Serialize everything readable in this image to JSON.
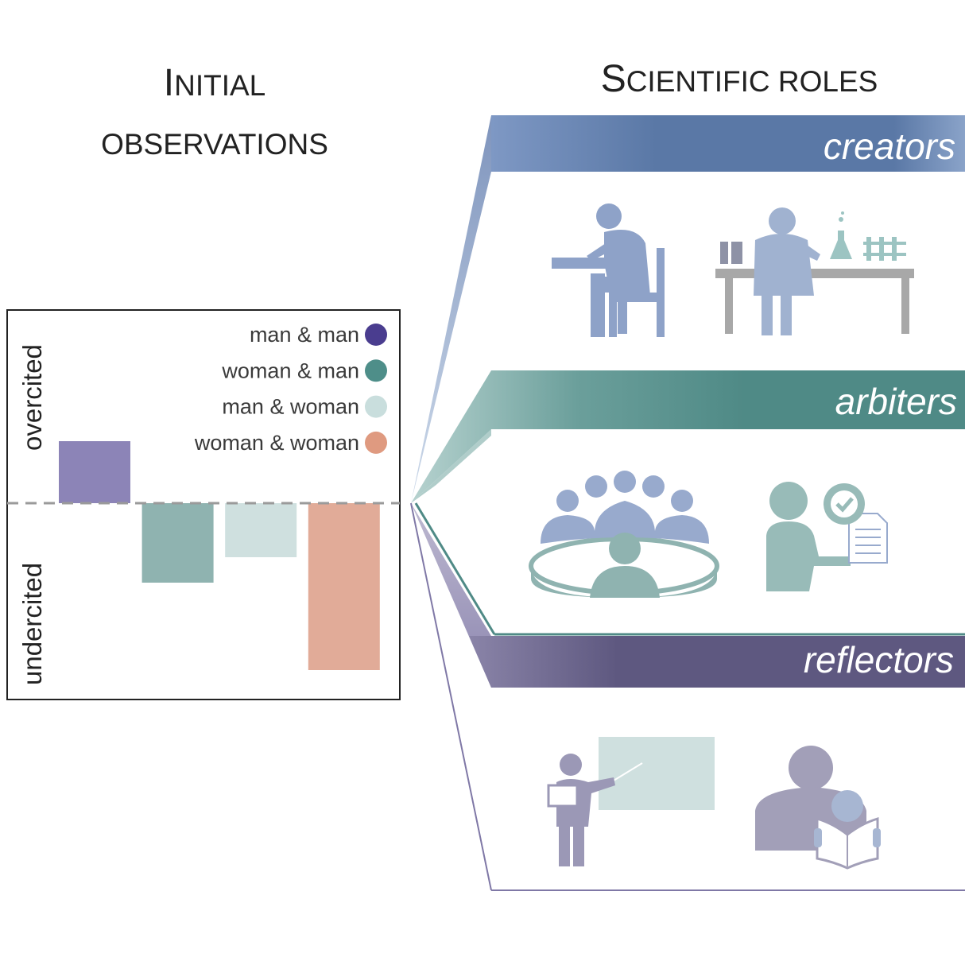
{
  "headings": {
    "initial_first": "I",
    "initial_rest": "NITIAL",
    "observations": "OBSERVATIONS",
    "roles_first": "S",
    "roles_rest": "CIENTIFIC ROLES"
  },
  "chart_data": {
    "type": "bar",
    "categories": [
      "man & man",
      "woman & man",
      "man & woman",
      "woman & woman"
    ],
    "series": [
      {
        "name": "man & man",
        "color": "#8c84b7",
        "value": 0.78
      },
      {
        "name": "woman & man",
        "color": "#8fb3b0",
        "value": -1.0
      },
      {
        "name": "man & woman",
        "color": "#cfe0df",
        "value": -0.68
      },
      {
        "name": "woman & woman",
        "color": "#e1ab98",
        "value": -2.1
      }
    ],
    "baseline": 0,
    "ylim": [
      -2.45,
      2.4
    ],
    "upper_label": "overcited",
    "lower_label": "undercited",
    "legend": [
      {
        "label": "man & man",
        "color": "#4a3d8f"
      },
      {
        "label": "woman & man",
        "color": "#4e8e89"
      },
      {
        "label": "man & woman",
        "color": "#c9dedd"
      },
      {
        "label": "woman & woman",
        "color": "#df9a80"
      }
    ],
    "legend_position": "top-right"
  },
  "roles": [
    {
      "label": "creators",
      "color": "#5a78a6",
      "icons": [
        "writing-person-icon",
        "lab-scientist-icon"
      ]
    },
    {
      "label": "arbiters",
      "color": "#4f8a86",
      "icons": [
        "committee-icon",
        "approval-reviewer-icon"
      ]
    },
    {
      "label": "reflectors",
      "color": "#5e5880",
      "icons": [
        "presenter-icon",
        "reader-icon"
      ]
    }
  ]
}
